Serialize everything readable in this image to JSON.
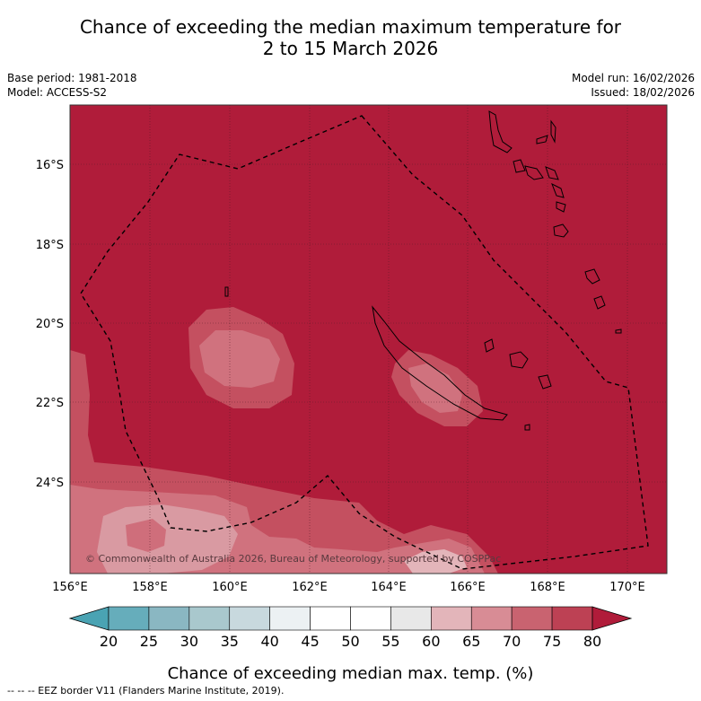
{
  "title_line1": "Chance of exceeding the median maximum temperature for",
  "title_line2": "2 to 15 March 2026",
  "meta": {
    "base_period": "Base period: 1981-2018",
    "model": "Model: ACCESS-S2",
    "model_run": "Model run: 16/02/2026",
    "issued": "Issued: 18/02/2026"
  },
  "map": {
    "lon_labels": [
      "156°E",
      "158°E",
      "160°E",
      "162°E",
      "164°E",
      "166°E",
      "168°E",
      "170°E"
    ],
    "lat_labels": [
      "16°S",
      "18°S",
      "20°S",
      "22°S",
      "24°S"
    ],
    "copyright": "© Commonwealth of Australia 2026, Bureau of Meteorology, supported by COSPPac"
  },
  "legend": {
    "ticks": [
      "20",
      "25",
      "30",
      "35",
      "40",
      "45",
      "50",
      "55",
      "60",
      "65",
      "70",
      "75",
      "80"
    ],
    "colors": [
      "#66adbb",
      "#8ab7c2",
      "#a9c8cd",
      "#c8d9de",
      "#ecf1f3",
      "#ffffff",
      "#ffffff",
      "#e8e8e8",
      "#e3b5ba",
      "#d88c95",
      "#c96370",
      "#bd4154"
    ],
    "low_color": "#4aa3b3",
    "high_color": "#b01c3a",
    "title": "Chance of exceeding median max. temp. (%)"
  },
  "footnote": "--  --  -- EEZ border V11 (Flanders Marine Institute, 2019)."
}
